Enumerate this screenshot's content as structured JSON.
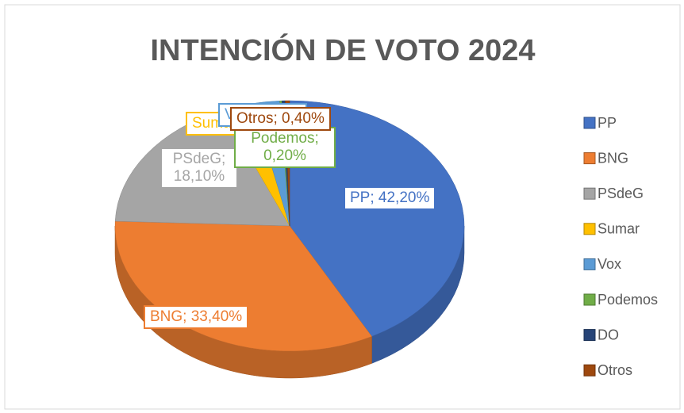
{
  "chart_data": {
    "type": "pie3d",
    "title": "INTENCIÓN DE VOTO 2024",
    "categories": [
      "PP",
      "BNG",
      "PSdeG",
      "Sumar",
      "Vox",
      "Podemos",
      "DO",
      "Otros"
    ],
    "values": [
      42.2,
      33.4,
      18.1,
      2.9,
      2.5,
      0.2,
      0.3,
      0.4
    ],
    "value_labels": [
      "PP; 42,20%",
      "BNG; 33,40%",
      "PSdeG; 18,10%",
      "Sumar; 2,90%",
      "Vox; 2,50%",
      "Podemos; 0,20%",
      null,
      "Otros; 0,40%"
    ],
    "colors": [
      "#4472c4",
      "#ed7d31",
      "#a5a5a5",
      "#ffc000",
      "#5b9bd5",
      "#70ad47",
      "#264478",
      "#9e480e"
    ],
    "legend": "right"
  }
}
